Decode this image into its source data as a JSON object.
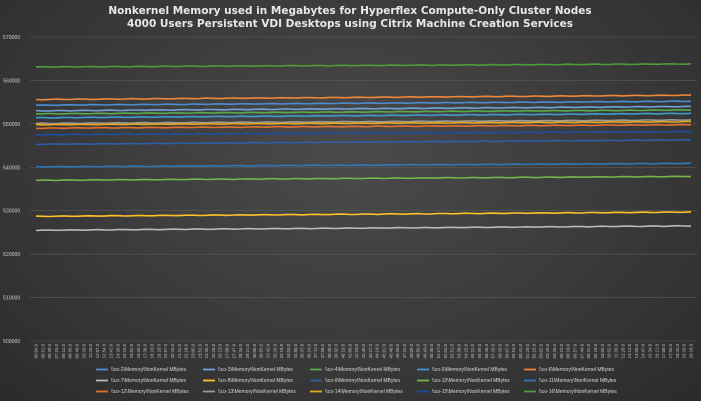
{
  "chart_data": {
    "type": "line",
    "title": "Nonkernel Memory used in Megabytes for Hyperflex Compute-Only Cluster Nodes",
    "subtitle": "4000 Users Persistent VDI Desktops using Citrix Machine Creation Services",
    "ylim": [
      500000,
      570000
    ],
    "yticks": [
      "500000",
      "510000",
      "520000",
      "530000",
      "540000",
      "550000",
      "560000",
      "570000"
    ],
    "grid": true,
    "legend_position": "bottom",
    "x": [
      "05:04.0",
      "05:51.0",
      "06:38.0",
      "07:25.0",
      "08:12.0",
      "08:59.0",
      "09:46.0",
      "10:33.0",
      "11:20.0",
      "12:07.0",
      "12:54.0",
      "13:41.0",
      "14:28.0",
      "15:15.0",
      "16:02.0",
      "16:49.0",
      "17:36.0",
      "18:23.0",
      "19:10.0",
      "19:57.0",
      "20:44.0",
      "21:31.0",
      "22:18.0",
      "23:05.0",
      "23:52.0",
      "24:39.0",
      "25:26.0",
      "26:13.0",
      "27:00.0",
      "27:47.0",
      "28:34.0",
      "29:21.0",
      "30:08.0",
      "30:55.0",
      "31:42.0",
      "32:29.0",
      "33:16.0",
      "34:03.0",
      "34:50.0",
      "35:37.0",
      "36:24.0",
      "37:11.0",
      "37:58.0",
      "38:45.0",
      "39:32.0",
      "40:19.0",
      "41:06.0",
      "41:53.0",
      "42:40.0",
      "43:27.0",
      "44:14.0",
      "45:01.0",
      "45:48.0",
      "46:35.0",
      "47:22.0",
      "48:09.0",
      "48:56.0",
      "49:43.0",
      "50:30.0",
      "51:17.0",
      "52:04.0",
      "52:51.0",
      "53:38.0",
      "54:25.0",
      "55:12.0",
      "55:59.0",
      "56:46.0",
      "57:33.0",
      "58:20.0",
      "59:07.0",
      "59:54.0",
      "00:41.0",
      "01:28.0",
      "02:15.0",
      "03:02.0",
      "03:49.0",
      "04:36.0",
      "05:23.0",
      "06:10.0",
      "06:57.0",
      "07:44.0",
      "08:31.0",
      "09:18.0",
      "10:05.0",
      "10:52.0",
      "11:39.0",
      "12:26.0",
      "13:13.0",
      "14:00.0",
      "14:47.0",
      "15:34.0",
      "16:21.0",
      "17:08.0",
      "17:55.0",
      "18:42.0",
      "19:29.0",
      "20:16.0"
    ],
    "series": [
      {
        "name": "\\\\co-2\\Memory\\NonKernel MBytes",
        "color": "#4d8ccf",
        "start": 554300,
        "end": 555200
      },
      {
        "name": "\\\\co-3\\Memory\\NonKernel MBytes",
        "color": "#6fa3d9",
        "start": 553000,
        "end": 554000
      },
      {
        "name": "\\\\co-4\\Memory\\NonKernel MBytes",
        "color": "#5aa94a",
        "start": 552300,
        "end": 553200
      },
      {
        "name": "\\\\co-5\\Memory\\NonKernel MBytes",
        "color": "#3f9bd0",
        "start": 551400,
        "end": 552400
      },
      {
        "name": "\\\\co-6\\Memory\\NonKernel MBytes",
        "color": "#f0873a",
        "start": 555600,
        "end": 556600
      },
      {
        "name": "\\\\co-7\\Memory\\NonKernel MBytes",
        "color": "#b9b9b9",
        "start": 525500,
        "end": 526500
      },
      {
        "name": "\\\\co-8\\Memory\\NonKernel MBytes",
        "color": "#ffc02a",
        "start": 528700,
        "end": 529700
      },
      {
        "name": "\\\\co-9\\Memory\\NonKernel MBytes",
        "color": "#2c5fa8",
        "start": 545300,
        "end": 546300
      },
      {
        "name": "\\\\co-10\\Memory\\NonKernel MBytes",
        "color": "#74b54a",
        "start": 537000,
        "end": 537900
      },
      {
        "name": "\\\\co-11\\Memory\\NonKernel MBytes",
        "color": "#2e78b8",
        "start": 540100,
        "end": 540900
      },
      {
        "name": "\\\\co-12\\Memory\\NonKernel MBytes",
        "color": "#e07030",
        "start": 549000,
        "end": 549800
      },
      {
        "name": "\\\\co-13\\Memory\\NonKernel MBytes",
        "color": "#9a9a9a",
        "start": 550100,
        "end": 550900
      },
      {
        "name": "\\\\co-14\\Memory\\NonKernel MBytes",
        "color": "#e8a818",
        "start": 549800,
        "end": 550500
      },
      {
        "name": "\\\\co-15\\Memory\\NonKernel MBytes",
        "color": "#1f4f9c",
        "start": 547500,
        "end": 548200
      },
      {
        "name": "\\\\co-16\\Memory\\NonKernel MBytes",
        "color": "#4e9b3a",
        "start": 563100,
        "end": 563800
      }
    ]
  }
}
